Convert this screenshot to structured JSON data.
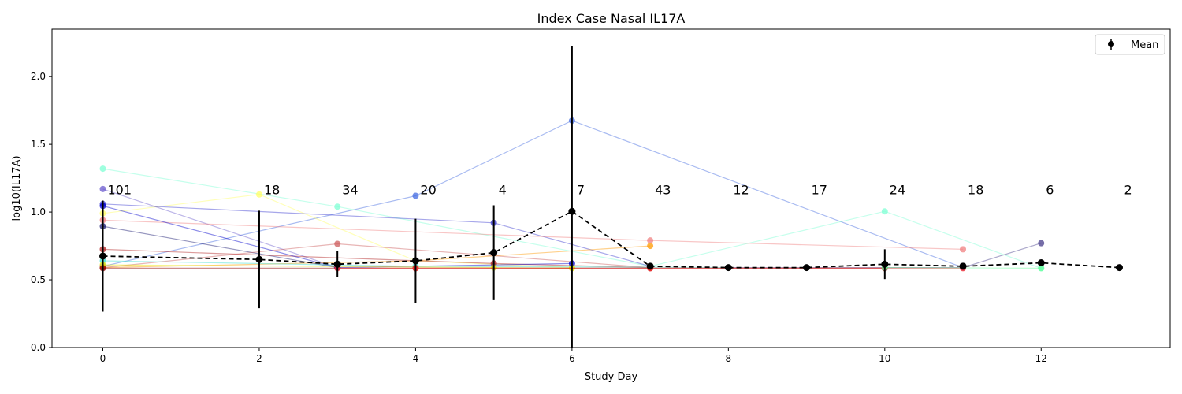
{
  "chart_data": {
    "type": "line",
    "title": "Index Case Nasal IL17A",
    "xlabel": "Study Day",
    "ylabel": "log10(IL17A)",
    "xlim": [
      -0.65,
      13.65
    ],
    "ylim": [
      0.0,
      2.35
    ],
    "xticks": [
      0,
      2,
      4,
      6,
      8,
      10,
      12
    ],
    "xtick_labels": [
      "0",
      "2",
      "4",
      "6",
      "8",
      "10",
      "12"
    ],
    "yticks": [
      0.0,
      0.5,
      1.0,
      1.5,
      2.0
    ],
    "ytick_labels": [
      "0.0",
      "0.5",
      "1.0",
      "1.5",
      "2.0"
    ],
    "grid": false,
    "legend": {
      "placement": "top-right",
      "entries": [
        "Mean"
      ]
    },
    "count_annotation_y": 1.16,
    "counts": [
      {
        "x": 0,
        "label": "101"
      },
      {
        "x": 2,
        "label": "18"
      },
      {
        "x": 3,
        "label": "34"
      },
      {
        "x": 4,
        "label": "20"
      },
      {
        "x": 5,
        "label": "4"
      },
      {
        "x": 6,
        "label": "7"
      },
      {
        "x": 7,
        "label": "43"
      },
      {
        "x": 8,
        "label": "12"
      },
      {
        "x": 9,
        "label": "17"
      },
      {
        "x": 10,
        "label": "24"
      },
      {
        "x": 11,
        "label": "18"
      },
      {
        "x": 12,
        "label": "6"
      },
      {
        "x": 13,
        "label": "2"
      }
    ],
    "mean": {
      "name": "Mean",
      "color": "#000000",
      "points": [
        {
          "x": 0,
          "y": 0.675,
          "err": 0.41
        },
        {
          "x": 2,
          "y": 0.65,
          "err": 0.36
        },
        {
          "x": 3,
          "y": 0.615,
          "err": 0.095
        },
        {
          "x": 4,
          "y": 0.64,
          "err": 0.31
        },
        {
          "x": 5,
          "y": 0.7,
          "err": 0.35
        },
        {
          "x": 6,
          "y": 1.005,
          "err": 1.22
        },
        {
          "x": 7,
          "y": 0.6,
          "err": 0.02
        },
        {
          "x": 8,
          "y": 0.59,
          "err": 0.01
        },
        {
          "x": 9,
          "y": 0.59,
          "err": 0.01
        },
        {
          "x": 10,
          "y": 0.615,
          "err": 0.11
        },
        {
          "x": 11,
          "y": 0.6,
          "err": 0.02
        },
        {
          "x": 12,
          "y": 0.625,
          "err": 0.0
        },
        {
          "x": 13,
          "y": 0.59,
          "err": 0.0
        }
      ]
    },
    "subjects": [
      {
        "color": "#4169e1",
        "points": [
          [
            0,
            0.6
          ],
          [
            4,
            1.12
          ],
          [
            6,
            1.675
          ],
          [
            11,
            0.59
          ]
        ]
      },
      {
        "color": "#7fffd4",
        "points": [
          [
            0,
            1.32
          ],
          [
            3,
            1.04
          ],
          [
            7,
            0.6
          ],
          [
            10,
            1.005
          ],
          [
            12,
            0.585
          ]
        ]
      },
      {
        "color": "#ffff66",
        "points": [
          [
            0,
            0.99
          ],
          [
            2,
            1.13
          ],
          [
            4,
            0.64
          ],
          [
            6,
            0.59
          ]
        ]
      },
      {
        "color": "#3b3bd0",
        "points": [
          [
            0,
            1.06
          ],
          [
            5,
            0.92
          ],
          [
            7,
            0.6
          ]
        ]
      },
      {
        "color": "#6a5acd",
        "points": [
          [
            0,
            1.17
          ],
          [
            3,
            0.59
          ]
        ]
      },
      {
        "color": "#f08080",
        "points": [
          [
            0,
            0.94
          ],
          [
            7,
            0.79
          ],
          [
            11,
            0.725
          ]
        ]
      },
      {
        "color": "#ff9900",
        "points": [
          [
            0,
            0.59
          ],
          [
            4,
            0.64
          ],
          [
            7,
            0.75
          ]
        ]
      },
      {
        "color": "#191970",
        "points": [
          [
            0,
            0.895
          ],
          [
            3,
            0.59
          ]
        ]
      },
      {
        "color": "#b22222",
        "points": [
          [
            0,
            0.725
          ],
          [
            5,
            0.62
          ],
          [
            7,
            0.59
          ]
        ]
      },
      {
        "color": "#cd5c5c",
        "points": [
          [
            0,
            0.59
          ],
          [
            3,
            0.765
          ],
          [
            7,
            0.59
          ]
        ]
      },
      {
        "color": "#0000cd",
        "points": [
          [
            0,
            1.045
          ],
          [
            3,
            0.59
          ],
          [
            6,
            0.62
          ]
        ]
      },
      {
        "color": "#483d8b",
        "points": [
          [
            8,
            0.59
          ],
          [
            11,
            0.59
          ],
          [
            12,
            0.77
          ]
        ]
      },
      {
        "color": "#40e0d0",
        "points": [
          [
            0,
            0.64
          ],
          [
            4,
            0.6
          ],
          [
            8,
            0.59
          ]
        ]
      },
      {
        "color": "#e6e600",
        "points": [
          [
            0,
            0.61
          ],
          [
            5,
            0.59
          ],
          [
            6,
            0.585
          ]
        ]
      },
      {
        "color": "#8b0000",
        "points": [
          [
            0,
            0.585
          ],
          [
            4,
            0.585
          ],
          [
            7,
            0.585
          ],
          [
            10,
            0.585
          ]
        ]
      },
      {
        "color": "#ff3333",
        "points": [
          [
            3,
            0.585
          ],
          [
            4,
            0.585
          ],
          [
            7,
            0.585
          ],
          [
            11,
            0.585
          ]
        ]
      },
      {
        "color": "#66ff99",
        "points": [
          [
            10,
            0.59
          ],
          [
            12,
            0.585
          ]
        ]
      }
    ]
  }
}
